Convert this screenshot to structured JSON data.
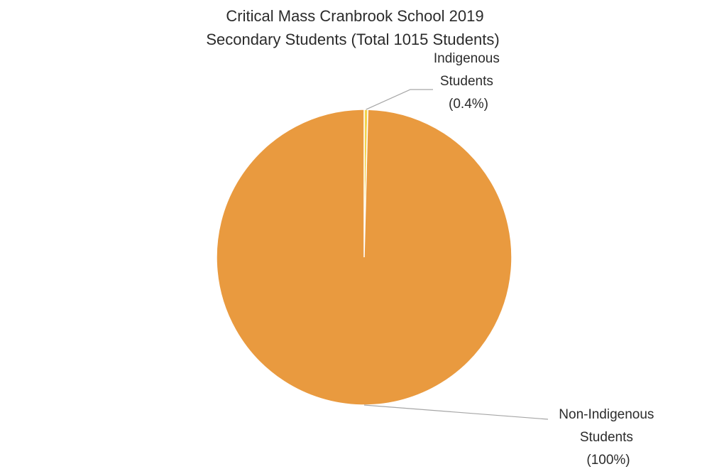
{
  "chart_data": {
    "type": "pie",
    "title": "Critical Mass Cranbrook School 2019",
    "subtitle": "Secondary Students (Total 1015 Students)",
    "slices": [
      {
        "name": "Indigenous Students",
        "value": 0.4,
        "label_lines": [
          "Indigenous",
          "Students",
          "(0.4%)"
        ],
        "color": "#F2D24B"
      },
      {
        "name": "Non-Indigenous Students",
        "value": 99.6,
        "label_lines": [
          "Non-Indigenous",
          "Students",
          "(100%)"
        ],
        "color": "#E99A3F"
      }
    ],
    "legend": "none"
  }
}
